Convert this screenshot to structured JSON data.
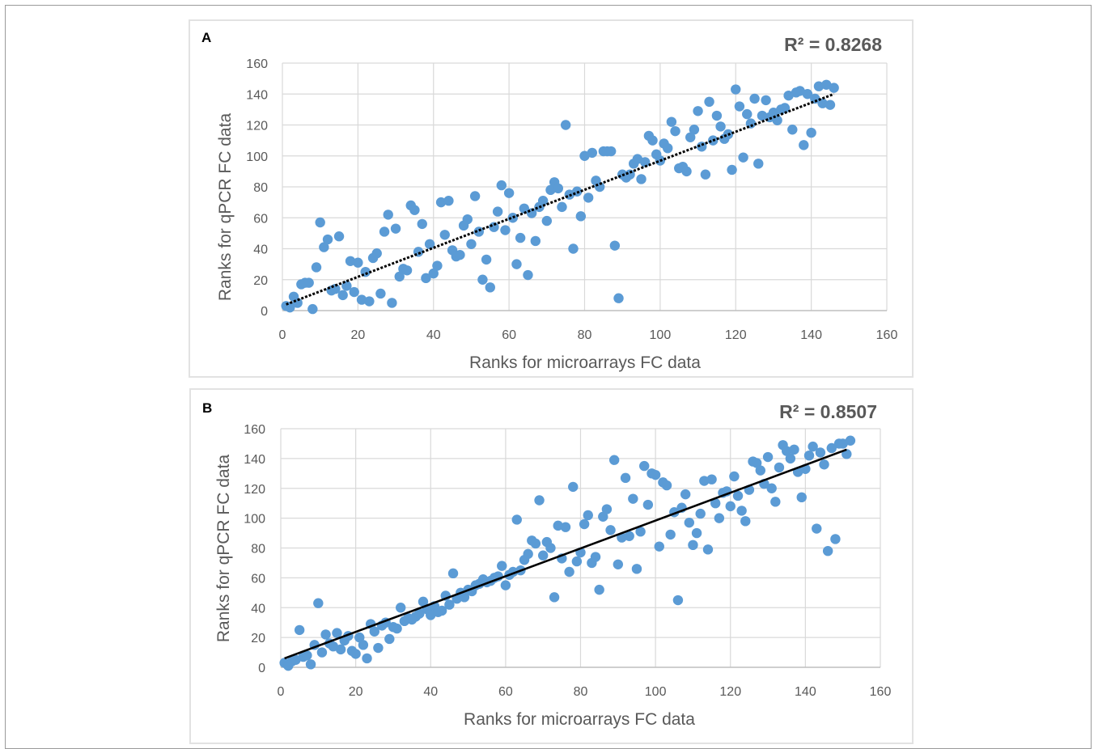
{
  "chart_data": [
    {
      "panel": "A",
      "type": "scatter",
      "r2_label": "R² = 0.8268",
      "xlabel": "Ranks for microarrays FC data",
      "ylabel": "Ranks for qPCR FC data",
      "xlim": [
        0,
        160
      ],
      "ylim": [
        0,
        160
      ],
      "xticks": [
        0,
        20,
        40,
        60,
        80,
        100,
        120,
        140,
        160
      ],
      "yticks": [
        0,
        20,
        40,
        60,
        80,
        100,
        120,
        140,
        160
      ],
      "grid": "vertical and horizontal",
      "trendline": {
        "style": "dotted",
        "x": [
          1,
          146
        ],
        "y": [
          4,
          140
        ]
      },
      "points": [
        [
          1,
          3
        ],
        [
          2,
          2
        ],
        [
          3,
          9
        ],
        [
          4,
          5
        ],
        [
          5,
          17
        ],
        [
          6,
          18
        ],
        [
          7,
          18
        ],
        [
          8,
          1
        ],
        [
          9,
          28
        ],
        [
          10,
          57
        ],
        [
          11,
          41
        ],
        [
          12,
          46
        ],
        [
          13,
          13
        ],
        [
          14,
          14
        ],
        [
          15,
          48
        ],
        [
          16,
          10
        ],
        [
          17,
          16
        ],
        [
          18,
          32
        ],
        [
          19,
          12
        ],
        [
          20,
          31
        ],
        [
          21,
          7
        ],
        [
          22,
          25
        ],
        [
          23,
          6
        ],
        [
          24,
          34
        ],
        [
          25,
          37
        ],
        [
          26,
          11
        ],
        [
          27,
          51
        ],
        [
          28,
          62
        ],
        [
          29,
          5
        ],
        [
          30,
          53
        ],
        [
          31,
          22
        ],
        [
          32,
          27
        ],
        [
          33,
          26
        ],
        [
          34,
          68
        ],
        [
          35,
          65
        ],
        [
          36,
          38
        ],
        [
          37,
          56
        ],
        [
          38,
          21
        ],
        [
          39,
          43
        ],
        [
          40,
          24
        ],
        [
          41,
          29
        ],
        [
          42,
          70
        ],
        [
          43,
          49
        ],
        [
          44,
          71
        ],
        [
          45,
          39
        ],
        [
          46,
          35
        ],
        [
          47,
          36
        ],
        [
          48,
          55
        ],
        [
          49,
          59
        ],
        [
          50,
          43
        ],
        [
          51,
          74
        ],
        [
          52,
          51
        ],
        [
          53,
          20
        ],
        [
          54,
          33
        ],
        [
          55,
          15
        ],
        [
          56,
          54
        ],
        [
          57,
          64
        ],
        [
          58,
          81
        ],
        [
          59,
          52
        ],
        [
          60,
          76
        ],
        [
          61,
          60
        ],
        [
          62,
          30
        ],
        [
          63,
          47
        ],
        [
          64,
          66
        ],
        [
          65,
          23
        ],
        [
          66,
          63
        ],
        [
          67,
          45
        ],
        [
          68,
          67
        ],
        [
          69,
          71
        ],
        [
          70,
          58
        ],
        [
          71,
          78
        ],
        [
          72,
          83
        ],
        [
          73,
          79
        ],
        [
          74,
          67
        ],
        [
          75,
          120
        ],
        [
          76,
          75
        ],
        [
          77,
          40
        ],
        [
          78,
          77
        ],
        [
          79,
          61
        ],
        [
          80,
          100
        ],
        [
          81,
          73
        ],
        [
          82,
          102
        ],
        [
          83,
          84
        ],
        [
          84,
          80
        ],
        [
          85,
          103
        ],
        [
          86,
          103
        ],
        [
          87,
          103
        ],
        [
          88,
          42
        ],
        [
          89,
          8
        ],
        [
          90,
          88
        ],
        [
          91,
          86
        ],
        [
          92,
          88
        ],
        [
          93,
          95
        ],
        [
          94,
          98
        ],
        [
          95,
          85
        ],
        [
          96,
          96
        ],
        [
          97,
          113
        ],
        [
          98,
          110
        ],
        [
          99,
          101
        ],
        [
          100,
          97
        ],
        [
          101,
          108
        ],
        [
          102,
          105
        ],
        [
          103,
          122
        ],
        [
          104,
          116
        ],
        [
          105,
          92
        ],
        [
          106,
          93
        ],
        [
          107,
          90
        ],
        [
          108,
          112
        ],
        [
          109,
          117
        ],
        [
          110,
          129
        ],
        [
          111,
          106
        ],
        [
          112,
          88
        ],
        [
          113,
          135
        ],
        [
          114,
          110
        ],
        [
          115,
          126
        ],
        [
          116,
          119
        ],
        [
          117,
          111
        ],
        [
          118,
          114
        ],
        [
          119,
          91
        ],
        [
          120,
          143
        ],
        [
          121,
          132
        ],
        [
          122,
          99
        ],
        [
          123,
          127
        ],
        [
          124,
          121
        ],
        [
          125,
          137
        ],
        [
          126,
          95
        ],
        [
          127,
          126
        ],
        [
          128,
          136
        ],
        [
          129,
          125
        ],
        [
          130,
          128
        ],
        [
          131,
          123
        ],
        [
          132,
          130
        ],
        [
          133,
          131
        ],
        [
          134,
          139
        ],
        [
          135,
          117
        ],
        [
          136,
          141
        ],
        [
          137,
          142
        ],
        [
          138,
          107
        ],
        [
          139,
          140
        ],
        [
          140,
          115
        ],
        [
          141,
          137
        ],
        [
          142,
          145
        ],
        [
          143,
          134
        ],
        [
          144,
          146
        ],
        [
          145,
          133
        ],
        [
          146,
          144
        ]
      ]
    },
    {
      "panel": "B",
      "type": "scatter",
      "r2_label": "R² = 0.8507",
      "xlabel": "Ranks for microarrays FC data",
      "ylabel": "Ranks for qPCR FC data",
      "xlim": [
        0,
        160
      ],
      "ylim": [
        0,
        160
      ],
      "xticks": [
        0,
        20,
        40,
        60,
        80,
        100,
        120,
        140,
        160
      ],
      "yticks": [
        0,
        20,
        40,
        60,
        80,
        100,
        120,
        140,
        160
      ],
      "grid": "vertical and horizontal",
      "trendline": {
        "style": "solid",
        "x": [
          1,
          151
        ],
        "y": [
          6,
          146
        ]
      },
      "points": [
        [
          1,
          3
        ],
        [
          2,
          1
        ],
        [
          3,
          4
        ],
        [
          4,
          5
        ],
        [
          5,
          25
        ],
        [
          6,
          7
        ],
        [
          7,
          8
        ],
        [
          8,
          2
        ],
        [
          9,
          15
        ],
        [
          10,
          43
        ],
        [
          11,
          10
        ],
        [
          12,
          22
        ],
        [
          13,
          16
        ],
        [
          14,
          14
        ],
        [
          15,
          23
        ],
        [
          16,
          12
        ],
        [
          17,
          18
        ],
        [
          18,
          21
        ],
        [
          19,
          11
        ],
        [
          20,
          9
        ],
        [
          21,
          20
        ],
        [
          22,
          15
        ],
        [
          23,
          6
        ],
        [
          24,
          29
        ],
        [
          25,
          24
        ],
        [
          26,
          13
        ],
        [
          27,
          28
        ],
        [
          28,
          30
        ],
        [
          29,
          19
        ],
        [
          30,
          27
        ],
        [
          31,
          26
        ],
        [
          32,
          40
        ],
        [
          33,
          31
        ],
        [
          34,
          33
        ],
        [
          35,
          32
        ],
        [
          36,
          34
        ],
        [
          37,
          36
        ],
        [
          38,
          44
        ],
        [
          39,
          39
        ],
        [
          40,
          35
        ],
        [
          41,
          41
        ],
        [
          42,
          37
        ],
        [
          43,
          38
        ],
        [
          44,
          48
        ],
        [
          45,
          42
        ],
        [
          46,
          63
        ],
        [
          47,
          46
        ],
        [
          48,
          50
        ],
        [
          49,
          47
        ],
        [
          50,
          52
        ],
        [
          51,
          51
        ],
        [
          52,
          55
        ],
        [
          53,
          56
        ],
        [
          54,
          59
        ],
        [
          55,
          57
        ],
        [
          56,
          58
        ],
        [
          57,
          60
        ],
        [
          58,
          61
        ],
        [
          59,
          68
        ],
        [
          60,
          55
        ],
        [
          61,
          62
        ],
        [
          62,
          64
        ],
        [
          63,
          99
        ],
        [
          64,
          65
        ],
        [
          65,
          72
        ],
        [
          66,
          76
        ],
        [
          67,
          85
        ],
        [
          68,
          83
        ],
        [
          69,
          112
        ],
        [
          70,
          75
        ],
        [
          71,
          84
        ],
        [
          72,
          80
        ],
        [
          73,
          47
        ],
        [
          74,
          95
        ],
        [
          75,
          73
        ],
        [
          76,
          94
        ],
        [
          77,
          64
        ],
        [
          78,
          121
        ],
        [
          79,
          71
        ],
        [
          80,
          77
        ],
        [
          81,
          96
        ],
        [
          82,
          102
        ],
        [
          83,
          70
        ],
        [
          84,
          74
        ],
        [
          85,
          52
        ],
        [
          86,
          101
        ],
        [
          87,
          106
        ],
        [
          88,
          92
        ],
        [
          89,
          139
        ],
        [
          90,
          69
        ],
        [
          91,
          87
        ],
        [
          92,
          127
        ],
        [
          93,
          88
        ],
        [
          94,
          113
        ],
        [
          95,
          66
        ],
        [
          96,
          91
        ],
        [
          97,
          135
        ],
        [
          98,
          109
        ],
        [
          99,
          130
        ],
        [
          100,
          129
        ],
        [
          101,
          81
        ],
        [
          102,
          124
        ],
        [
          103,
          122
        ],
        [
          104,
          89
        ],
        [
          105,
          104
        ],
        [
          106,
          45
        ],
        [
          107,
          107
        ],
        [
          108,
          116
        ],
        [
          109,
          97
        ],
        [
          110,
          82
        ],
        [
          111,
          90
        ],
        [
          112,
          103
        ],
        [
          113,
          125
        ],
        [
          114,
          79
        ],
        [
          115,
          126
        ],
        [
          116,
          110
        ],
        [
          117,
          100
        ],
        [
          118,
          117
        ],
        [
          119,
          118
        ],
        [
          120,
          108
        ],
        [
          121,
          128
        ],
        [
          122,
          115
        ],
        [
          123,
          105
        ],
        [
          124,
          98
        ],
        [
          125,
          119
        ],
        [
          126,
          138
        ],
        [
          127,
          137
        ],
        [
          128,
          132
        ],
        [
          129,
          123
        ],
        [
          130,
          141
        ],
        [
          131,
          120
        ],
        [
          132,
          111
        ],
        [
          133,
          134
        ],
        [
          134,
          149
        ],
        [
          135,
          145
        ],
        [
          136,
          140
        ],
        [
          137,
          146
        ],
        [
          138,
          131
        ],
        [
          139,
          114
        ],
        [
          140,
          133
        ],
        [
          141,
          142
        ],
        [
          142,
          148
        ],
        [
          143,
          93
        ],
        [
          144,
          144
        ],
        [
          145,
          136
        ],
        [
          146,
          78
        ],
        [
          147,
          147
        ],
        [
          148,
          86
        ],
        [
          149,
          150
        ],
        [
          150,
          150
        ],
        [
          151,
          143
        ],
        [
          152,
          152
        ]
      ]
    }
  ],
  "colors": {
    "marker": "#5b9bd5",
    "trendline": "#000000",
    "gridline": "#d9d9d9",
    "text": "#595959",
    "panel_border": "#e2e2e2"
  }
}
